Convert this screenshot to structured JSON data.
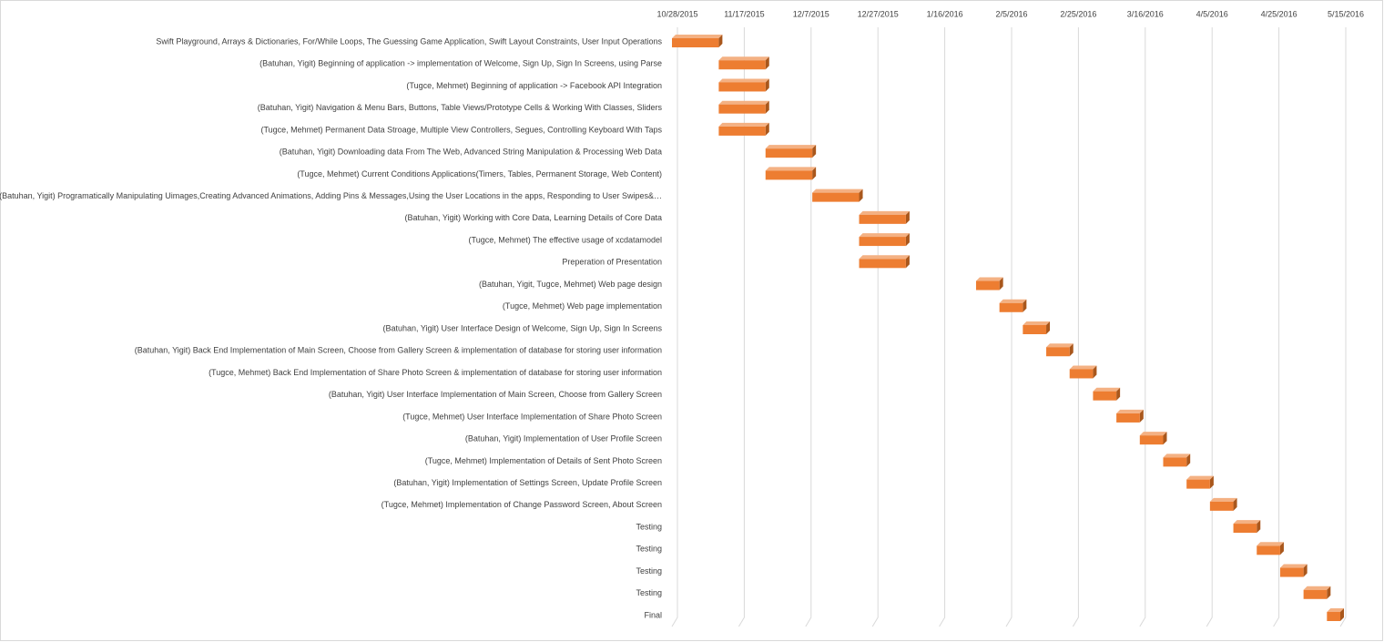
{
  "chart_data": {
    "type": "gantt",
    "color": "#ed7d31",
    "xlim": [
      "10/28/2015",
      "5/15/2016"
    ],
    "xticks": [
      "10/28/2015",
      "11/17/2015",
      "12/7/2015",
      "12/27/2015",
      "1/16/2016",
      "2/5/2016",
      "2/25/2016",
      "3/16/2016",
      "4/5/2016",
      "4/25/2016",
      "5/15/2016"
    ],
    "grid": true,
    "tasks": [
      {
        "name": "Swift Playground, Arrays & Dictionaries, For/While Loops, The Guessing Game Application, Swift Layout Constraints, User Input Operations",
        "start": "10/28/2015",
        "end": "11/11/2015"
      },
      {
        "name": "(Batuhan, Yigit) Beginning of application -> implementation of Welcome, Sign Up, Sign In Screens, using Parse",
        "start": "11/11/2015",
        "end": "11/25/2015"
      },
      {
        "name": "(Tugce, Mehmet) Beginning of application -> Facebook API Integration",
        "start": "11/11/2015",
        "end": "11/25/2015"
      },
      {
        "name": "(Batuhan, Yigit) Navigation & Menu Bars, Buttons, Table Views/Prototype Cells & Working With Classes, Sliders",
        "start": "11/11/2015",
        "end": "11/25/2015"
      },
      {
        "name": "(Tugce, Mehmet) Permanent Data Stroage, Multiple View Controllers, Segues, Controlling Keyboard With Taps",
        "start": "11/11/2015",
        "end": "11/25/2015"
      },
      {
        "name": "(Batuhan, Yigit) Downloading data From The Web, Advanced String Manipulation & Processing Web Data",
        "start": "11/25/2015",
        "end": "12/9/2015"
      },
      {
        "name": "(Tugce, Mehmet) Current Conditions Applications(Timers, Tables, Permanent Storage, Web Content)",
        "start": "11/25/2015",
        "end": "12/9/2015"
      },
      {
        "name": "(Batuhan, Yigit) Programatically Manipulating Uimages,Creating Advanced Animations, Adding Pins & Messages,Using the User Locations in the apps, Responding to User Swipes&…",
        "start": "12/9/2015",
        "end": "12/23/2015"
      },
      {
        "name": "(Batuhan, Yigit) Working with Core Data, Learning Details of Core Data",
        "start": "12/23/2015",
        "end": "1/6/2016"
      },
      {
        "name": "(Tugce, Mehmet) The effective usage of xcdatamodel",
        "start": "12/23/2015",
        "end": "1/6/2016"
      },
      {
        "name": "Preperation of Presentation",
        "start": "12/23/2015",
        "end": "1/6/2016"
      },
      {
        "name": "(Batuhan, Yigit, Tugce, Mehmet) Web page design",
        "start": "1/27/2016",
        "end": "2/3/2016"
      },
      {
        "name": "(Tugce, Mehmet) Web page implementation",
        "start": "2/3/2016",
        "end": "2/10/2016"
      },
      {
        "name": "(Batuhan, Yigit) User Interface Design of Welcome, Sign Up, Sign In Screens",
        "start": "2/10/2016",
        "end": "2/17/2016"
      },
      {
        "name": "(Batuhan, Yigit) Back End Implementation of Main Screen, Choose from Gallery Screen & implementation of database for storing user information",
        "start": "2/17/2016",
        "end": "2/24/2016"
      },
      {
        "name": "(Tugce, Mehmet) Back End Implementation of Share Photo Screen & implementation of database for storing user information",
        "start": "2/24/2016",
        "end": "3/2/2016"
      },
      {
        "name": "(Batuhan, Yigit) User Interface Implementation of Main Screen, Choose from Gallery Screen",
        "start": "3/2/2016",
        "end": "3/9/2016"
      },
      {
        "name": "(Tugce, Mehmet) User Interface Implementation of  Share Photo Screen",
        "start": "3/9/2016",
        "end": "3/16/2016"
      },
      {
        "name": "(Batuhan, Yigit) Implementation of User Profile Screen",
        "start": "3/16/2016",
        "end": "3/23/2016"
      },
      {
        "name": "(Tugce, Mehmet) Implementation of  Details of Sent Photo Screen",
        "start": "3/23/2016",
        "end": "3/30/2016"
      },
      {
        "name": "(Batuhan, Yigit) Implementation of Settings Screen, Update Profile Screen",
        "start": "3/30/2016",
        "end": "4/6/2016"
      },
      {
        "name": "(Tugce, Mehmet) Implementation of Change Password Screen, About Screen",
        "start": "4/6/2016",
        "end": "4/13/2016"
      },
      {
        "name": "Testing",
        "start": "4/13/2016",
        "end": "4/20/2016"
      },
      {
        "name": "Testing",
        "start": "4/20/2016",
        "end": "4/27/2016"
      },
      {
        "name": "Testing",
        "start": "4/27/2016",
        "end": "5/4/2016"
      },
      {
        "name": "Testing",
        "start": "5/4/2016",
        "end": "5/11/2016"
      },
      {
        "name": "Final",
        "start": "5/11/2016",
        "end": "5/15/2016"
      }
    ]
  }
}
